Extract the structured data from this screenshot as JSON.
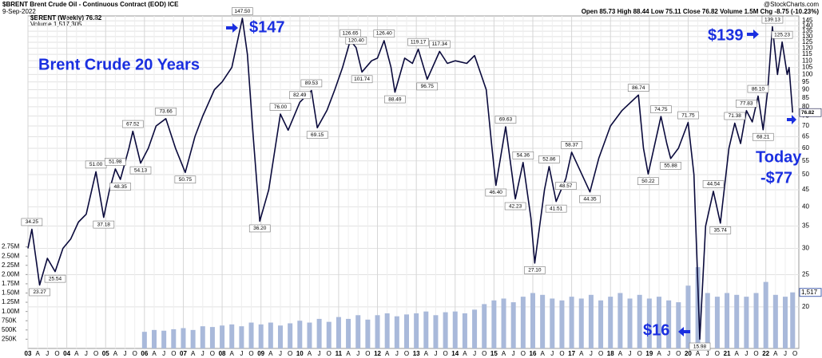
{
  "chart_data": {
    "type": "line",
    "title": "Brent Crude 20 Years",
    "header": {
      "symbol": "$BRENT Brent Crude Oil - Continuous Contract (EOD) ICE",
      "date": "9-Sep-2022",
      "quote": "Open 85.73  High 88.44  Low 75.11  Close 76.82  Volume 1.5M  Chg -8.75 (-10.23%)",
      "source": "@StockCharts.com"
    },
    "annotations": [
      "$147",
      "$139",
      "Today",
      "-$77",
      "$16"
    ],
    "series": [
      {
        "name": "$BRENT (Weekly) 76.82",
        "color": "#0a0a3c",
        "x": [
          2003.0,
          2003.1,
          2003.3,
          2003.5,
          2003.7,
          2003.9,
          2004.1,
          2004.3,
          2004.5,
          2004.75,
          2004.95,
          2005.1,
          2005.25,
          2005.38,
          2005.6,
          2005.7,
          2005.9,
          2006.1,
          2006.3,
          2006.55,
          2006.8,
          2007.05,
          2007.3,
          2007.5,
          2007.8,
          2008.0,
          2008.25,
          2008.52,
          2008.65,
          2008.8,
          2008.97,
          2009.2,
          2009.5,
          2009.7,
          2010.0,
          2010.3,
          2010.45,
          2010.7,
          2010.9,
          2011.1,
          2011.3,
          2011.45,
          2011.6,
          2011.85,
          2012.0,
          2012.17,
          2012.35,
          2012.45,
          2012.7,
          2012.9,
          2013.05,
          2013.28,
          2013.6,
          2013.8,
          2014.0,
          2014.3,
          2014.5,
          2014.8,
          2014.95,
          2015.05,
          2015.3,
          2015.55,
          2015.75,
          2015.95,
          2016.05,
          2016.3,
          2016.42,
          2016.6,
          2016.85,
          2017.0,
          2017.2,
          2017.47,
          2017.7,
          2018.0,
          2018.3,
          2018.72,
          2018.85,
          2018.97,
          2019.3,
          2019.45,
          2019.55,
          2019.75,
          2020.0,
          2020.15,
          2020.3,
          2020.45,
          2020.65,
          2020.83,
          2021.05,
          2021.2,
          2021.35,
          2021.5,
          2021.65,
          2021.8,
          2021.93,
          2022.05,
          2022.17,
          2022.3,
          2022.42,
          2022.55,
          2022.6,
          2022.69
        ],
        "values": [
          30,
          34.25,
          23.27,
          28,
          25.54,
          30,
          32,
          36,
          38,
          51.0,
          37.18,
          45,
          51.98,
          48.35,
          60,
          67.52,
          54.13,
          60,
          70,
          73.66,
          60,
          50.75,
          65,
          75,
          90,
          95,
          105,
          147.5,
          115,
          65,
          36.2,
          45,
          76.0,
          68,
          82.49,
          89.53,
          69.15,
          78,
          90,
          105,
          126.65,
          120.4,
          101.74,
          110,
          112,
          126.4,
          105,
          88.49,
          112,
          108,
          119.17,
          96.75,
          117.34,
          108,
          110,
          108,
          114,
          90,
          60,
          46.4,
          69.63,
          42.23,
          54.36,
          37,
          27.1,
          45,
          52.86,
          41.51,
          48.57,
          58.37,
          52,
          44.35,
          56,
          70,
          78,
          86.74,
          60,
          50.22,
          74.75,
          62,
          55.88,
          60,
          71.75,
          50,
          15.98,
          35,
          44.54,
          35.74,
          60,
          71.38,
          62,
          77.83,
          72,
          86.1,
          68.21,
          90,
          139.13,
          100,
          125.23,
          100,
          105,
          76.82
        ],
        "value_labels": [
          null,
          "34.25",
          "23.27",
          null,
          "25.54",
          null,
          null,
          null,
          null,
          "51.00",
          "37.18",
          null,
          "51.98",
          "48.35",
          null,
          "67.52",
          "54.13",
          null,
          null,
          "73.66",
          null,
          "50.75",
          null,
          null,
          null,
          null,
          null,
          "147.50",
          null,
          null,
          "36.20",
          null,
          "76.00",
          null,
          "82.49",
          "89.53",
          "69.15",
          null,
          null,
          null,
          "126.65",
          "120.40",
          "101.74",
          null,
          null,
          "126.40",
          null,
          "88.49",
          null,
          null,
          "119.17",
          "96.75",
          "117.34",
          null,
          null,
          null,
          null,
          null,
          null,
          "46.40",
          "69.63",
          "42.23",
          "54.36",
          null,
          "27.10",
          null,
          "52.86",
          "41.51",
          "48.57",
          "58.37",
          null,
          "44.35",
          null,
          null,
          null,
          "86.74",
          null,
          "50.22",
          "74.75",
          null,
          "55.88",
          null,
          "71.75",
          null,
          "15.98",
          null,
          "44.54",
          "35.74",
          null,
          "71.38",
          null,
          "77.83",
          null,
          "86.10",
          "68.21",
          null,
          "139.13",
          null,
          "125.23",
          null,
          null,
          "76.82"
        ]
      }
    ],
    "volume": {
      "name": "Volume 1,517,305",
      "color": "#a9b9da",
      "last_label": "1,517",
      "x": [
        2006.0,
        2006.25,
        2006.5,
        2006.75,
        2007.0,
        2007.25,
        2007.5,
        2007.75,
        2008.0,
        2008.25,
        2008.5,
        2008.75,
        2009.0,
        2009.25,
        2009.5,
        2009.75,
        2010.0,
        2010.25,
        2010.5,
        2010.75,
        2011.0,
        2011.25,
        2011.5,
        2011.75,
        2012.0,
        2012.25,
        2012.5,
        2012.75,
        2013.0,
        2013.25,
        2013.5,
        2013.75,
        2014.0,
        2014.25,
        2014.5,
        2014.75,
        2015.0,
        2015.25,
        2015.5,
        2015.75,
        2016.0,
        2016.25,
        2016.5,
        2016.75,
        2017.0,
        2017.25,
        2017.5,
        2017.75,
        2018.0,
        2018.25,
        2018.5,
        2018.75,
        2019.0,
        2019.25,
        2019.5,
        2019.75,
        2020.0,
        2020.25,
        2020.5,
        2020.75,
        2021.0,
        2021.25,
        2021.5,
        2021.75,
        2022.0,
        2022.25,
        2022.5,
        2022.69
      ],
      "values": [
        450000,
        500000,
        480000,
        520000,
        550000,
        500000,
        600000,
        580000,
        620000,
        650000,
        600000,
        700000,
        650000,
        700000,
        620000,
        680000,
        750000,
        700000,
        800000,
        720000,
        850000,
        800000,
        900000,
        780000,
        900000,
        950000,
        870000,
        920000,
        950000,
        1000000,
        900000,
        980000,
        1000000,
        950000,
        1050000,
        1200000,
        1300000,
        1350000,
        1250000,
        1400000,
        1500000,
        1450000,
        1350000,
        1300000,
        1400000,
        1350000,
        1450000,
        1300000,
        1400000,
        1500000,
        1350000,
        1450000,
        1350000,
        1400000,
        1300000,
        1250000,
        1700000,
        2200000,
        1500000,
        1400000,
        1500000,
        1450000,
        1400000,
        1500000,
        1800000,
        1450000,
        1400000,
        1517305
      ]
    },
    "xlim": [
      2003.0,
      2022.85
    ],
    "xticks": [
      {
        "value": 2003,
        "label": "03"
      },
      {
        "value": 2003.25,
        "label": "A"
      },
      {
        "value": 2003.5,
        "label": "J"
      },
      {
        "value": 2003.75,
        "label": "O"
      },
      {
        "value": 2004,
        "label": "04"
      },
      {
        "value": 2004.25,
        "label": "A"
      },
      {
        "value": 2004.5,
        "label": "J"
      },
      {
        "value": 2004.75,
        "label": "O"
      },
      {
        "value": 2005,
        "label": "05"
      },
      {
        "value": 2005.25,
        "label": "A"
      },
      {
        "value": 2005.5,
        "label": "J"
      },
      {
        "value": 2005.75,
        "label": "O"
      },
      {
        "value": 2006,
        "label": "06"
      },
      {
        "value": 2006.25,
        "label": "A"
      },
      {
        "value": 2006.5,
        "label": "J"
      },
      {
        "value": 2006.75,
        "label": "O"
      },
      {
        "value": 2007,
        "label": "07"
      },
      {
        "value": 2007.25,
        "label": "A"
      },
      {
        "value": 2007.5,
        "label": "J"
      },
      {
        "value": 2007.75,
        "label": "O"
      },
      {
        "value": 2008,
        "label": "08"
      },
      {
        "value": 2008.25,
        "label": "A"
      },
      {
        "value": 2008.5,
        "label": "J"
      },
      {
        "value": 2008.75,
        "label": "O"
      },
      {
        "value": 2009,
        "label": "09"
      },
      {
        "value": 2009.25,
        "label": "A"
      },
      {
        "value": 2009.5,
        "label": "J"
      },
      {
        "value": 2009.75,
        "label": "O"
      },
      {
        "value": 2010,
        "label": "10"
      },
      {
        "value": 2010.25,
        "label": "A"
      },
      {
        "value": 2010.5,
        "label": "J"
      },
      {
        "value": 2010.75,
        "label": "O"
      },
      {
        "value": 2011,
        "label": "11"
      },
      {
        "value": 2011.25,
        "label": "A"
      },
      {
        "value": 2011.5,
        "label": "J"
      },
      {
        "value": 2011.75,
        "label": "O"
      },
      {
        "value": 2012,
        "label": "12"
      },
      {
        "value": 2012.25,
        "label": "A"
      },
      {
        "value": 2012.5,
        "label": "J"
      },
      {
        "value": 2012.75,
        "label": "O"
      },
      {
        "value": 2013,
        "label": "13"
      },
      {
        "value": 2013.25,
        "label": "A"
      },
      {
        "value": 2013.5,
        "label": "J"
      },
      {
        "value": 2013.75,
        "label": "O"
      },
      {
        "value": 2014,
        "label": "14"
      },
      {
        "value": 2014.25,
        "label": "A"
      },
      {
        "value": 2014.5,
        "label": "J"
      },
      {
        "value": 2014.75,
        "label": "O"
      },
      {
        "value": 2015,
        "label": "15"
      },
      {
        "value": 2015.25,
        "label": "A"
      },
      {
        "value": 2015.5,
        "label": "J"
      },
      {
        "value": 2015.75,
        "label": "O"
      },
      {
        "value": 2016,
        "label": "16"
      },
      {
        "value": 2016.25,
        "label": "A"
      },
      {
        "value": 2016.5,
        "label": "J"
      },
      {
        "value": 2016.75,
        "label": "O"
      },
      {
        "value": 2017,
        "label": "17"
      },
      {
        "value": 2017.25,
        "label": "A"
      },
      {
        "value": 2017.5,
        "label": "J"
      },
      {
        "value": 2017.75,
        "label": "O"
      },
      {
        "value": 2018,
        "label": "18"
      },
      {
        "value": 2018.25,
        "label": "A"
      },
      {
        "value": 2018.5,
        "label": "J"
      },
      {
        "value": 2018.75,
        "label": "O"
      },
      {
        "value": 2019,
        "label": "19"
      },
      {
        "value": 2019.25,
        "label": "A"
      },
      {
        "value": 2019.5,
        "label": "J"
      },
      {
        "value": 2019.75,
        "label": "O"
      },
      {
        "value": 2020,
        "label": "20"
      },
      {
        "value": 2020.25,
        "label": "A"
      },
      {
        "value": 2020.5,
        "label": "J"
      },
      {
        "value": 2020.75,
        "label": "O"
      },
      {
        "value": 2021,
        "label": "21"
      },
      {
        "value": 2021.25,
        "label": "A"
      },
      {
        "value": 2021.5,
        "label": "J"
      },
      {
        "value": 2021.75,
        "label": "O"
      },
      {
        "value": 2022,
        "label": "22"
      },
      {
        "value": 2022.25,
        "label": "A"
      },
      {
        "value": 2022.5,
        "label": "J"
      },
      {
        "value": 2022.75,
        "label": "O"
      }
    ],
    "ylim": [
      15,
      150
    ],
    "log_scale": true,
    "yticks": [
      20,
      25,
      30,
      35,
      40,
      45,
      50,
      55,
      60,
      65,
      70,
      75,
      80,
      85,
      90,
      95,
      100,
      105,
      110,
      115,
      120,
      125,
      130,
      135,
      140,
      145
    ],
    "vlim": [
      0,
      9000000
    ],
    "vticks": [
      {
        "value": 250000,
        "label": "250K"
      },
      {
        "value": 500000,
        "label": "500K"
      },
      {
        "value": 750000,
        "label": "750K"
      },
      {
        "value": 1000000,
        "label": "1.00M"
      },
      {
        "value": 1250000,
        "label": "1.25M"
      },
      {
        "value": 1500000,
        "label": "1.50M"
      },
      {
        "value": 1750000,
        "label": "1.75M"
      },
      {
        "value": 2000000,
        "label": "2.00M"
      },
      {
        "value": 2250000,
        "label": "2.25M"
      },
      {
        "value": 2500000,
        "label": "2.50M"
      },
      {
        "value": 2750000,
        "label": "2.75M"
      }
    ],
    "grid": true
  }
}
